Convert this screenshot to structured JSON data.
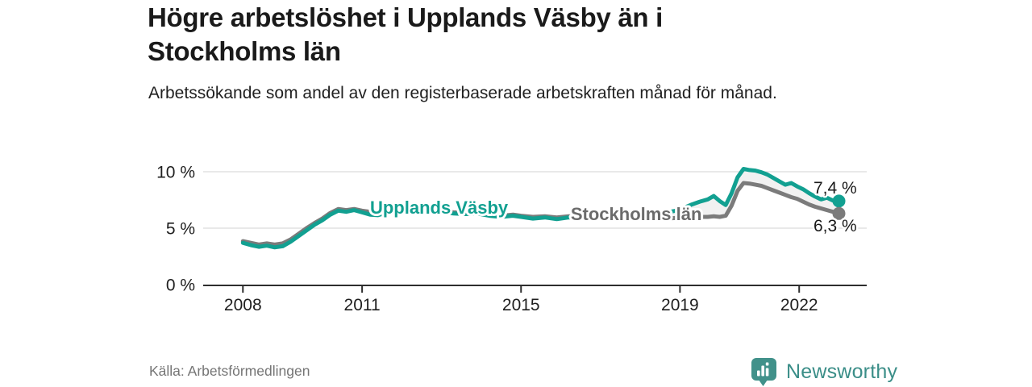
{
  "header": {
    "title": "Högre arbetslöshet i Upplands Väsby än i Stockholms län",
    "subtitle": "Arbetssökande som andel av den registerbaserade arbetskraften månad för månad."
  },
  "footer": {
    "source": "Källa: Arbetsförmedlingen",
    "brand_name": "Newsworthy",
    "brand_icon": "bar-chart-speech-bubble-icon"
  },
  "colors": {
    "upplands_vasby_teal": "#12a091",
    "stockholms_lan_gray": "#7b7b7b",
    "stockholms_label_gray": "#6b6b6b",
    "gap_fill": "#f1f1f1",
    "grid": "#dcdcdc",
    "axis": "#2e2e2e",
    "value_label_text": "#1a1a1a",
    "brand_teal": "#3b8e88",
    "logo_background": "#41918a"
  },
  "chart_data": {
    "type": "line",
    "title": "Högre arbetslöshet i Upplands Väsby än i Stockholms län",
    "subtitle": "Arbetssökande som andel av den registerbaserade arbetskraften månad för månad.",
    "unit": "%",
    "grid": true,
    "legend_position": "inline",
    "x_range": [
      2007,
      2023.7
    ],
    "y_range": [
      0,
      10.5
    ],
    "x_ticks": [
      {
        "value": 2008,
        "label": "2008"
      },
      {
        "value": 2011,
        "label": "2011"
      },
      {
        "value": 2015,
        "label": "2015"
      },
      {
        "value": 2019,
        "label": "2019"
      },
      {
        "value": 2022,
        "label": "2022"
      }
    ],
    "y_ticks": [
      {
        "value": 0,
        "label": "0 %"
      },
      {
        "value": 5,
        "label": "5 %"
      },
      {
        "value": 10,
        "label": "10 %"
      }
    ],
    "series": [
      {
        "name": "Upplands Väsby",
        "color": "#12a091",
        "label_color": "#12a091",
        "end_label": "7,4 %",
        "end_value": 7.4,
        "inline_label": {
          "x": 2011.2,
          "y": 6.86,
          "anchor": "start"
        },
        "end_label_pos": {
          "x": 2023.45,
          "y": 8.07,
          "anchor": "end"
        },
        "points": [
          [
            2008.0,
            3.7
          ],
          [
            2008.2,
            3.5
          ],
          [
            2008.4,
            3.35
          ],
          [
            2008.6,
            3.45
          ],
          [
            2008.8,
            3.3
          ],
          [
            2009.0,
            3.4
          ],
          [
            2009.2,
            3.8
          ],
          [
            2009.4,
            4.3
          ],
          [
            2009.6,
            4.8
          ],
          [
            2009.8,
            5.3
          ],
          [
            2010.0,
            5.7
          ],
          [
            2010.2,
            6.2
          ],
          [
            2010.4,
            6.55
          ],
          [
            2010.6,
            6.45
          ],
          [
            2010.8,
            6.6
          ],
          [
            2011.0,
            6.4
          ],
          [
            2011.2,
            6.2
          ],
          [
            2011.4,
            6.15
          ],
          [
            2011.6,
            6.35
          ],
          [
            2011.8,
            6.55
          ],
          [
            2012.0,
            6.65
          ],
          [
            2012.2,
            6.6
          ],
          [
            2012.4,
            6.5
          ],
          [
            2012.6,
            6.55
          ],
          [
            2012.8,
            6.4
          ],
          [
            2013.0,
            6.45
          ],
          [
            2013.3,
            6.3
          ],
          [
            2013.6,
            6.25
          ],
          [
            2013.9,
            6.3
          ],
          [
            2014.2,
            6.1
          ],
          [
            2014.5,
            6.0
          ],
          [
            2014.8,
            6.1
          ],
          [
            2015.0,
            6.0
          ],
          [
            2015.3,
            5.85
          ],
          [
            2015.6,
            5.95
          ],
          [
            2015.9,
            5.8
          ],
          [
            2016.2,
            5.95
          ],
          [
            2016.5,
            5.9
          ],
          [
            2016.8,
            6.0
          ],
          [
            2017.1,
            5.9
          ],
          [
            2017.4,
            6.0
          ],
          [
            2017.7,
            6.05
          ],
          [
            2018.0,
            6.1
          ],
          [
            2018.3,
            6.2
          ],
          [
            2018.6,
            6.35
          ],
          [
            2018.9,
            6.55
          ],
          [
            2019.1,
            6.8
          ],
          [
            2019.3,
            7.1
          ],
          [
            2019.5,
            7.35
          ],
          [
            2019.7,
            7.55
          ],
          [
            2019.85,
            7.85
          ],
          [
            2020.0,
            7.4
          ],
          [
            2020.15,
            7.05
          ],
          [
            2020.3,
            8.1
          ],
          [
            2020.45,
            9.5
          ],
          [
            2020.6,
            10.25
          ],
          [
            2020.75,
            10.15
          ],
          [
            2020.9,
            10.1
          ],
          [
            2021.05,
            9.95
          ],
          [
            2021.2,
            9.75
          ],
          [
            2021.35,
            9.45
          ],
          [
            2021.5,
            9.15
          ],
          [
            2021.65,
            8.85
          ],
          [
            2021.8,
            9.0
          ],
          [
            2021.95,
            8.7
          ],
          [
            2022.1,
            8.45
          ],
          [
            2022.25,
            8.1
          ],
          [
            2022.4,
            7.8
          ],
          [
            2022.55,
            7.55
          ],
          [
            2022.7,
            7.7
          ],
          [
            2022.85,
            7.45
          ],
          [
            2023.0,
            7.4
          ]
        ]
      },
      {
        "name": "Stockholms län",
        "color": "#7b7b7b",
        "label_color": "#6b6b6b",
        "end_label": "6,3 %",
        "end_value": 6.3,
        "inline_label": {
          "x": 2016.25,
          "y": 6.3,
          "anchor": "start"
        },
        "end_label_pos": {
          "x": 2023.45,
          "y": 4.71,
          "anchor": "end"
        },
        "points": [
          [
            2008.0,
            3.85
          ],
          [
            2008.2,
            3.7
          ],
          [
            2008.4,
            3.55
          ],
          [
            2008.6,
            3.65
          ],
          [
            2008.8,
            3.55
          ],
          [
            2009.0,
            3.65
          ],
          [
            2009.2,
            4.0
          ],
          [
            2009.4,
            4.5
          ],
          [
            2009.6,
            5.0
          ],
          [
            2009.8,
            5.45
          ],
          [
            2010.0,
            5.85
          ],
          [
            2010.2,
            6.35
          ],
          [
            2010.4,
            6.7
          ],
          [
            2010.6,
            6.6
          ],
          [
            2010.8,
            6.7
          ],
          [
            2011.0,
            6.55
          ],
          [
            2011.2,
            6.45
          ],
          [
            2011.4,
            6.4
          ],
          [
            2011.6,
            6.5
          ],
          [
            2011.8,
            6.6
          ],
          [
            2012.0,
            6.7
          ],
          [
            2012.2,
            6.65
          ],
          [
            2012.4,
            6.55
          ],
          [
            2012.6,
            6.6
          ],
          [
            2012.8,
            6.5
          ],
          [
            2013.0,
            6.55
          ],
          [
            2013.3,
            6.4
          ],
          [
            2013.6,
            6.35
          ],
          [
            2013.9,
            6.4
          ],
          [
            2014.2,
            6.2
          ],
          [
            2014.5,
            6.1
          ],
          [
            2014.8,
            6.2
          ],
          [
            2015.0,
            6.1
          ],
          [
            2015.3,
            6.0
          ],
          [
            2015.6,
            6.05
          ],
          [
            2015.9,
            5.95
          ],
          [
            2016.2,
            6.05
          ],
          [
            2016.5,
            6.0
          ],
          [
            2016.8,
            6.1
          ],
          [
            2017.1,
            6.0
          ],
          [
            2017.4,
            6.05
          ],
          [
            2017.7,
            6.1
          ],
          [
            2018.0,
            6.0
          ],
          [
            2018.3,
            5.9
          ],
          [
            2018.6,
            5.85
          ],
          [
            2018.9,
            5.9
          ],
          [
            2019.1,
            5.9
          ],
          [
            2019.3,
            5.95
          ],
          [
            2019.5,
            6.0
          ],
          [
            2019.7,
            6.0
          ],
          [
            2019.85,
            6.05
          ],
          [
            2020.0,
            6.0
          ],
          [
            2020.15,
            6.1
          ],
          [
            2020.3,
            7.0
          ],
          [
            2020.45,
            8.3
          ],
          [
            2020.6,
            9.0
          ],
          [
            2020.75,
            8.95
          ],
          [
            2020.9,
            8.85
          ],
          [
            2021.05,
            8.75
          ],
          [
            2021.2,
            8.55
          ],
          [
            2021.35,
            8.35
          ],
          [
            2021.5,
            8.15
          ],
          [
            2021.65,
            7.95
          ],
          [
            2021.8,
            7.75
          ],
          [
            2021.95,
            7.6
          ],
          [
            2022.1,
            7.35
          ],
          [
            2022.25,
            7.1
          ],
          [
            2022.4,
            6.9
          ],
          [
            2022.55,
            6.75
          ],
          [
            2022.7,
            6.6
          ],
          [
            2022.85,
            6.45
          ],
          [
            2023.0,
            6.3
          ]
        ]
      }
    ]
  }
}
